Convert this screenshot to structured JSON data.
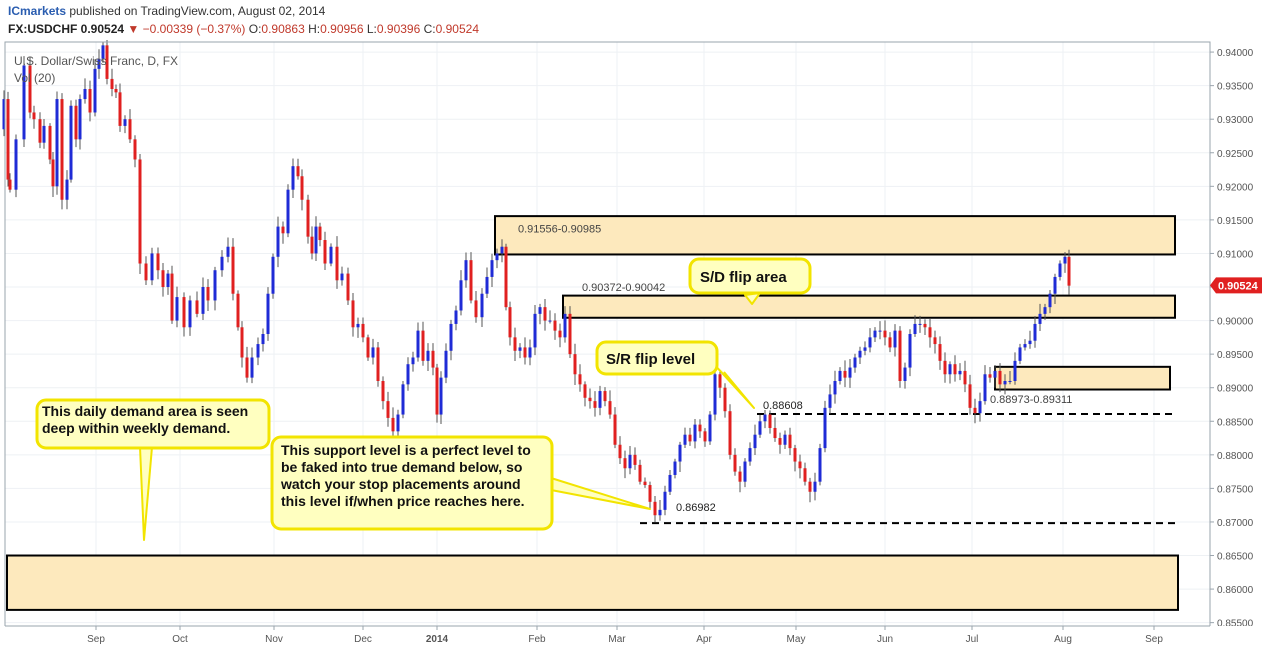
{
  "header": {
    "publisher": "ICmarkets",
    "published_text": "published on TradingView.com, August 02, 2014",
    "symbol": "FX:USDCHF",
    "last": "0.90524",
    "change": "−0.00339 (−0.37%)",
    "open_label": "O:",
    "open": "0.90863",
    "high_label": "H:",
    "high": "0.90956",
    "low_label": "L:",
    "low": "0.90396",
    "close_label": "C:",
    "close": "0.90524"
  },
  "chart_data": {
    "type": "candlestick",
    "title": "U.S. Dollar/Swiss Franc, D, FX",
    "indicator": "Vol (20)",
    "ylim": [
      0.8545,
      0.9415
    ],
    "y_ticks": [
      "0.94000",
      "0.93500",
      "0.93000",
      "0.92500",
      "0.92000",
      "0.91500",
      "0.91000",
      "0.90500",
      "0.90000",
      "0.89500",
      "0.89000",
      "0.88500",
      "0.88000",
      "0.87500",
      "0.87000",
      "0.86500",
      "0.86000",
      "0.85500"
    ],
    "x_labels": [
      "Sep",
      "Oct",
      "Nov",
      "Dec",
      "2014",
      "Feb",
      "Mar",
      "Apr",
      "May",
      "Jun",
      "Jul",
      "Aug",
      "Sep"
    ],
    "current_price": "0.90524",
    "up_color": "#1f2bd6",
    "down_color": "#e02020",
    "price_series": [
      [
        0,
        0.9285
      ],
      [
        4,
        0.933
      ],
      [
        8,
        0.921
      ],
      [
        10,
        0.9195
      ],
      [
        16,
        0.927
      ],
      [
        24,
        0.938
      ],
      [
        30,
        0.931
      ],
      [
        34,
        0.93
      ],
      [
        40,
        0.9265
      ],
      [
        44,
        0.929
      ],
      [
        50,
        0.924
      ],
      [
        53,
        0.92
      ],
      [
        57,
        0.933
      ],
      [
        62,
        0.918
      ],
      [
        67,
        0.921
      ],
      [
        71,
        0.932
      ],
      [
        76,
        0.927
      ],
      [
        80,
        0.933
      ],
      [
        85,
        0.9345
      ],
      [
        90,
        0.931
      ],
      [
        95,
        0.9375
      ],
      [
        99,
        0.939
      ],
      [
        103,
        0.941
      ],
      [
        107,
        0.936
      ],
      [
        112,
        0.9345
      ],
      [
        116,
        0.934
      ],
      [
        120,
        0.929
      ],
      [
        125,
        0.93
      ],
      [
        130,
        0.927
      ],
      [
        135,
        0.924
      ],
      [
        140,
        0.9085
      ],
      [
        146,
        0.906
      ],
      [
        152,
        0.91
      ],
      [
        158,
        0.9075
      ],
      [
        163,
        0.905
      ],
      [
        168,
        0.907
      ],
      [
        172,
        0.9
      ],
      [
        177,
        0.9035
      ],
      [
        184,
        0.899
      ],
      [
        190,
        0.903
      ],
      [
        197,
        0.901
      ],
      [
        203,
        0.905
      ],
      [
        208,
        0.903
      ],
      [
        215,
        0.9075
      ],
      [
        222,
        0.9095
      ],
      [
        228,
        0.911
      ],
      [
        233,
        0.904
      ],
      [
        238,
        0.899
      ],
      [
        242,
        0.8945
      ],
      [
        247,
        0.8915
      ],
      [
        252,
        0.8945
      ],
      [
        258,
        0.8965
      ],
      [
        263,
        0.898
      ],
      [
        268,
        0.904
      ],
      [
        273,
        0.9095
      ],
      [
        278,
        0.914
      ],
      [
        283,
        0.913
      ],
      [
        288,
        0.9195
      ],
      [
        293,
        0.923
      ],
      [
        298,
        0.9215
      ],
      [
        302,
        0.918
      ],
      [
        308,
        0.9125
      ],
      [
        312,
        0.91
      ],
      [
        316,
        0.914
      ],
      [
        320,
        0.912
      ],
      [
        325,
        0.9085
      ],
      [
        331,
        0.911
      ],
      [
        337,
        0.906
      ],
      [
        342,
        0.907
      ],
      [
        348,
        0.903
      ],
      [
        353,
        0.899
      ],
      [
        358,
        0.8995
      ],
      [
        363,
        0.8975
      ],
      [
        368,
        0.8945
      ],
      [
        373,
        0.896
      ],
      [
        378,
        0.891
      ],
      [
        383,
        0.888
      ],
      [
        388,
        0.8855
      ],
      [
        393,
        0.8835
      ],
      [
        398,
        0.886
      ],
      [
        403,
        0.8905
      ],
      [
        408,
        0.8935
      ],
      [
        413,
        0.8945
      ],
      [
        418,
        0.8985
      ],
      [
        423,
        0.894
      ],
      [
        428,
        0.8955
      ],
      [
        433,
        0.893
      ],
      [
        437,
        0.886
      ],
      [
        441,
        0.8915
      ],
      [
        446,
        0.8955
      ],
      [
        451,
        0.8995
      ],
      [
        456,
        0.9015
      ],
      [
        461,
        0.906
      ],
      [
        466,
        0.909
      ],
      [
        471,
        0.903
      ],
      [
        476,
        0.9005
      ],
      [
        482,
        0.904
      ],
      [
        487,
        0.9065
      ],
      [
        492,
        0.909
      ],
      [
        497,
        0.91
      ],
      [
        502,
        0.911
      ],
      [
        506,
        0.902
      ],
      [
        510,
        0.8975
      ],
      [
        515,
        0.8955
      ],
      [
        520,
        0.896
      ],
      [
        525,
        0.8945
      ],
      [
        530,
        0.896
      ],
      [
        535,
        0.901
      ],
      [
        540,
        0.902
      ],
      [
        545,
        0.9
      ],
      [
        550,
        0.9
      ],
      [
        555,
        0.8985
      ],
      [
        560,
        0.8975
      ],
      [
        565,
        0.901
      ],
      [
        570,
        0.895
      ],
      [
        575,
        0.892
      ],
      [
        580,
        0.8905
      ],
      [
        585,
        0.8885
      ],
      [
        590,
        0.888
      ],
      [
        595,
        0.887
      ],
      [
        600,
        0.8895
      ],
      [
        605,
        0.888
      ],
      [
        610,
        0.886
      ],
      [
        615,
        0.8815
      ],
      [
        620,
        0.8795
      ],
      [
        625,
        0.878
      ],
      [
        630,
        0.88
      ],
      [
        635,
        0.8785
      ],
      [
        640,
        0.876
      ],
      [
        645,
        0.8755
      ],
      [
        650,
        0.873
      ],
      [
        655,
        0.871
      ],
      [
        660,
        0.8718
      ],
      [
        665,
        0.8745
      ],
      [
        670,
        0.877
      ],
      [
        675,
        0.879
      ],
      [
        680,
        0.8815
      ],
      [
        685,
        0.883
      ],
      [
        690,
        0.882
      ],
      [
        695,
        0.8845
      ],
      [
        700,
        0.8835
      ],
      [
        705,
        0.882
      ],
      [
        710,
        0.886
      ],
      [
        715,
        0.892
      ],
      [
        720,
        0.89
      ],
      [
        725,
        0.8865
      ],
      [
        730,
        0.88
      ],
      [
        735,
        0.8775
      ],
      [
        740,
        0.876
      ],
      [
        745,
        0.879
      ],
      [
        750,
        0.881
      ],
      [
        755,
        0.883
      ],
      [
        760,
        0.885
      ],
      [
        765,
        0.886
      ],
      [
        770,
        0.884
      ],
      [
        775,
        0.8825
      ],
      [
        780,
        0.8815
      ],
      [
        785,
        0.883
      ],
      [
        790,
        0.881
      ],
      [
        795,
        0.879
      ],
      [
        800,
        0.878
      ],
      [
        805,
        0.876
      ],
      [
        810,
        0.8745
      ],
      [
        815,
        0.876
      ],
      [
        820,
        0.881
      ],
      [
        825,
        0.887
      ],
      [
        830,
        0.889
      ],
      [
        835,
        0.891
      ],
      [
        840,
        0.8925
      ],
      [
        845,
        0.8915
      ],
      [
        850,
        0.893
      ],
      [
        855,
        0.8945
      ],
      [
        860,
        0.8955
      ],
      [
        865,
        0.896
      ],
      [
        870,
        0.8975
      ],
      [
        875,
        0.8985
      ],
      [
        880,
        0.8985
      ],
      [
        885,
        0.8975
      ],
      [
        890,
        0.896
      ],
      [
        895,
        0.8985
      ],
      [
        900,
        0.891
      ],
      [
        905,
        0.893
      ],
      [
        910,
        0.898
      ],
      [
        915,
        0.8995
      ],
      [
        920,
        0.8995
      ],
      [
        925,
        0.899
      ],
      [
        930,
        0.8975
      ],
      [
        935,
        0.8965
      ],
      [
        940,
        0.894
      ],
      [
        945,
        0.892
      ],
      [
        950,
        0.8935
      ],
      [
        955,
        0.892
      ],
      [
        960,
        0.8925
      ],
      [
        965,
        0.8905
      ],
      [
        970,
        0.887
      ],
      [
        975,
        0.8862
      ],
      [
        980,
        0.888
      ],
      [
        985,
        0.892
      ],
      [
        990,
        0.8915
      ],
      [
        995,
        0.8925
      ],
      [
        1000,
        0.8905
      ],
      [
        1005,
        0.891
      ],
      [
        1010,
        0.891
      ],
      [
        1015,
        0.894
      ],
      [
        1020,
        0.896
      ],
      [
        1025,
        0.8965
      ],
      [
        1030,
        0.897
      ],
      [
        1035,
        0.8995
      ],
      [
        1040,
        0.901
      ],
      [
        1045,
        0.902
      ],
      [
        1050,
        0.904
      ],
      [
        1055,
        0.9065
      ],
      [
        1060,
        0.9085
      ],
      [
        1065,
        0.9095
      ],
      [
        1069,
        0.9052
      ]
    ],
    "zones": [
      {
        "label": "0.91556-0.90985",
        "top": 0.91556,
        "bottom": 0.90985,
        "x_start": 495,
        "x_end": 1175
      },
      {
        "label": "0.90372-0.90042",
        "top": 0.90372,
        "bottom": 0.90042,
        "x_start": 563,
        "x_end": 1175
      },
      {
        "label": "0.88973-0.89311",
        "top": 0.89311,
        "bottom": 0.88973,
        "x_start": 995,
        "x_end": 1170
      },
      {
        "label": "",
        "top": 0.865,
        "bottom": 0.8569,
        "x_start": 7,
        "x_end": 1178
      }
    ],
    "levels": [
      {
        "label": "0.88608",
        "value": 0.88608,
        "x_start": 757,
        "x_end": 1175
      },
      {
        "label": "0.86982",
        "value": 0.86982,
        "x_start": 640,
        "x_end": 1175
      }
    ],
    "annotations": [
      {
        "text": "S/D flip area"
      },
      {
        "text": "S/R flip level"
      },
      {
        "text": "This daily demand area is seen deep within weekly demand."
      },
      {
        "text": "This support level is a perfect level to be faked into true demand below, so watch your stop placements around this level if/when price reaches here."
      }
    ]
  }
}
